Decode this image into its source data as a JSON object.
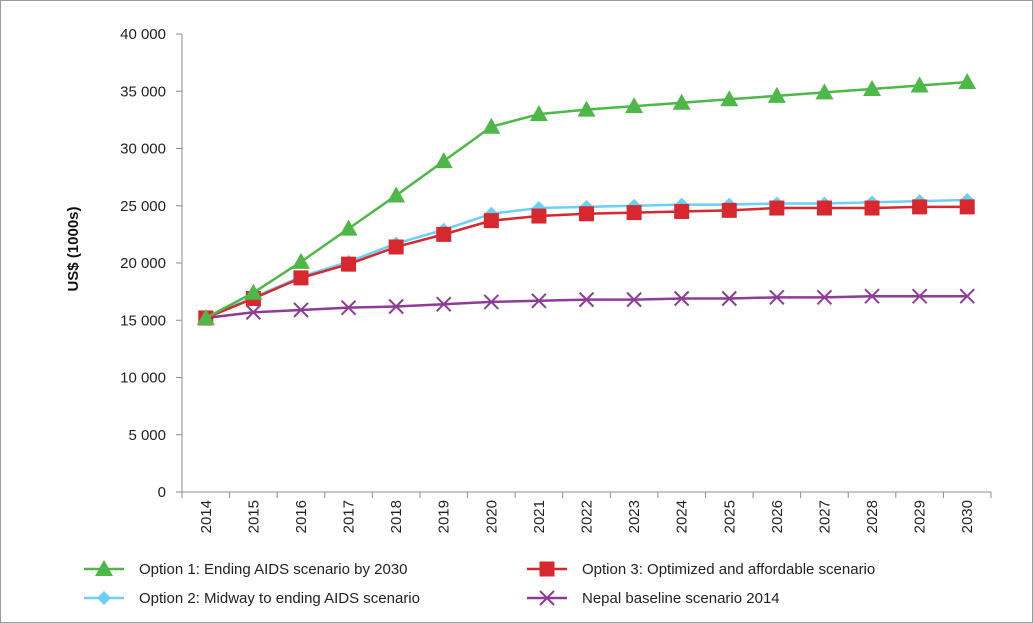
{
  "chart_data": {
    "type": "line",
    "title": "",
    "xlabel": "",
    "ylabel": "US$ (1000s)",
    "ylim": [
      0,
      40000
    ],
    "yticks": [
      0,
      5000,
      10000,
      15000,
      20000,
      25000,
      30000,
      35000,
      40000
    ],
    "ytick_labels": [
      "0",
      "5 000",
      "10 000",
      "15 000",
      "20 000",
      "25 000",
      "30 000",
      "35 000",
      "40 000"
    ],
    "categories": [
      "2014",
      "2015",
      "2016",
      "2017",
      "2018",
      "2019",
      "2020",
      "2021",
      "2022",
      "2023",
      "2024",
      "2025",
      "2026",
      "2027",
      "2028",
      "2029",
      "2030"
    ],
    "grid": false,
    "legend_position": "bottom",
    "series": [
      {
        "name": "Option 1: Ending AIDS scenario by 2030",
        "color": "#4db848",
        "marker": "triangle",
        "values": [
          15200,
          17400,
          20100,
          23000,
          25900,
          28900,
          31900,
          33000,
          33400,
          33700,
          34000,
          34300,
          34600,
          34900,
          35200,
          35500,
          35800
        ]
      },
      {
        "name": "Option 2: Midway to ending AIDS scenario",
        "color": "#6ccff6",
        "marker": "diamond",
        "values": [
          15200,
          17000,
          18800,
          20100,
          21700,
          22900,
          24300,
          24800,
          24900,
          25000,
          25100,
          25100,
          25200,
          25200,
          25300,
          25400,
          25500
        ]
      },
      {
        "name": "Option 3: Optimized and affordable scenario",
        "color": "#d7282f",
        "marker": "square",
        "values": [
          15200,
          16900,
          18700,
          19900,
          21400,
          22500,
          23700,
          24100,
          24300,
          24400,
          24500,
          24600,
          24800,
          24800,
          24800,
          24900,
          24900
        ]
      },
      {
        "name": "Nepal baseline scenario 2014",
        "color": "#8e3b97",
        "marker": "x",
        "values": [
          15200,
          15700,
          15900,
          16100,
          16200,
          16400,
          16600,
          16700,
          16800,
          16800,
          16900,
          16900,
          17000,
          17000,
          17100,
          17100,
          17100
        ]
      }
    ]
  }
}
